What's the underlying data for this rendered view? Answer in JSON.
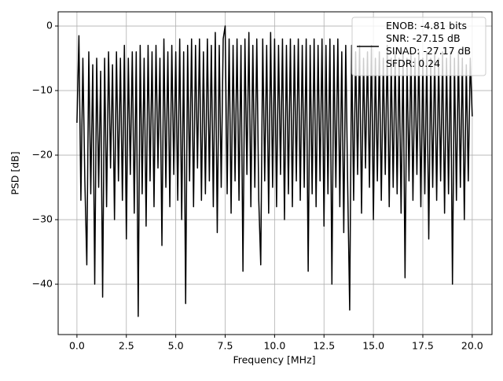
{
  "chart_data": {
    "type": "line",
    "xlabel": "Frequency [MHz]",
    "ylabel": "PSD [dB]",
    "xlim": [
      -0.95,
      21.0
    ],
    "ylim": [
      -47.8,
      2.2
    ],
    "xticks": [
      {
        "value": 0,
        "label": "0.0"
      },
      2.5,
      {
        "value": 5,
        "label": "5.0"
      },
      7.5,
      {
        "value": 10,
        "label": "10.0"
      },
      12.5,
      {
        "value": 15,
        "label": "15.0"
      },
      17.5,
      {
        "value": 20,
        "label": "20.0"
      }
    ],
    "yticks": [
      0,
      {
        "value": -10,
        "label": "−10"
      },
      {
        "value": -20,
        "label": "−20"
      },
      {
        "value": -30,
        "label": "−30"
      },
      {
        "value": -40,
        "label": "−40"
      }
    ],
    "grid": true,
    "legend": "upper right",
    "x": [
      0.0,
      0.1,
      0.2,
      0.3,
      0.4,
      0.5,
      0.6,
      0.7,
      0.8,
      0.9,
      1.0,
      1.1,
      1.2,
      1.3,
      1.4,
      1.5,
      1.6,
      1.7,
      1.8,
      1.9,
      2.0,
      2.1,
      2.2,
      2.3,
      2.4,
      2.5,
      2.6,
      2.7,
      2.8,
      2.9,
      3.0,
      3.1,
      3.2,
      3.3,
      3.4,
      3.5,
      3.6,
      3.7,
      3.8,
      3.9,
      4.0,
      4.1,
      4.2,
      4.3,
      4.4,
      4.5,
      4.6,
      4.7,
      4.8,
      4.9,
      5.0,
      5.1,
      5.2,
      5.3,
      5.4,
      5.5,
      5.6,
      5.7,
      5.8,
      5.9,
      6.0,
      6.1,
      6.2,
      6.3,
      6.4,
      6.5,
      6.6,
      6.7,
      6.8,
      6.9,
      7.0,
      7.1,
      7.2,
      7.3,
      7.4,
      7.5,
      7.6,
      7.7,
      7.8,
      7.9,
      8.0,
      8.1,
      8.2,
      8.3,
      8.4,
      8.5,
      8.6,
      8.7,
      8.8,
      8.9,
      9.0,
      9.1,
      9.2,
      9.3,
      9.4,
      9.5,
      9.6,
      9.7,
      9.8,
      9.9,
      10.0,
      10.1,
      10.2,
      10.3,
      10.4,
      10.5,
      10.6,
      10.7,
      10.8,
      10.9,
      11.0,
      11.1,
      11.2,
      11.3,
      11.4,
      11.5,
      11.6,
      11.7,
      11.8,
      11.9,
      12.0,
      12.1,
      12.2,
      12.3,
      12.4,
      12.5,
      12.6,
      12.7,
      12.8,
      12.9,
      13.0,
      13.1,
      13.2,
      13.3,
      13.4,
      13.5,
      13.6,
      13.7,
      13.8,
      13.9,
      14.0,
      14.1,
      14.2,
      14.3,
      14.4,
      14.5,
      14.6,
      14.7,
      14.8,
      14.9,
      15.0,
      15.1,
      15.2,
      15.3,
      15.4,
      15.5,
      15.6,
      15.7,
      15.8,
      15.9,
      16.0,
      16.1,
      16.2,
      16.3,
      16.4,
      16.5,
      16.6,
      16.7,
      16.8,
      16.9,
      17.0,
      17.1,
      17.2,
      17.3,
      17.4,
      17.5,
      17.6,
      17.7,
      17.8,
      17.9,
      18.0,
      18.1,
      18.2,
      18.3,
      18.4,
      18.5,
      18.6,
      18.7,
      18.8,
      18.9,
      19.0,
      19.1,
      19.2,
      19.3,
      19.4,
      19.5,
      19.6,
      19.7,
      19.8,
      19.9,
      20.0
    ],
    "series": [
      {
        "name": "ENOB: -4.81 bits\nSNR: -27.15 dB\nSINAD: -27.17 dB\nSFDR: 0.24",
        "color": "#000000",
        "values": [
          -15,
          -1.5,
          -27,
          -5,
          -24,
          -37,
          -4,
          -26,
          -6,
          -40,
          -5,
          -25,
          -7,
          -42,
          -5,
          -28,
          -4,
          -22,
          -6,
          -30,
          -4,
          -24,
          -5,
          -27,
          -3,
          -33,
          -5,
          -23,
          -4,
          -29,
          -4,
          -45,
          -3,
          -26,
          -5,
          -31,
          -3,
          -24,
          -4,
          -28,
          -3,
          -22,
          -5,
          -34,
          -2,
          -25,
          -4,
          -28,
          -3,
          -23,
          -4,
          -27,
          -2,
          -30,
          -4,
          -43,
          -3,
          -24,
          -2,
          -28,
          -3,
          -22,
          -2,
          -27,
          -4,
          -26,
          -2,
          -24,
          -3,
          -28,
          -1,
          -32,
          -3,
          -25,
          -2,
          0,
          -26,
          -2,
          -29,
          -3,
          -24,
          -2,
          -27,
          -3,
          -38,
          -2,
          -23,
          -1,
          -28,
          -3,
          -25,
          -2,
          -27,
          -37,
          -2,
          -24,
          -3,
          -29,
          -1,
          -25,
          -2,
          -28,
          -3,
          -23,
          -2,
          -30,
          -3,
          -26,
          -2,
          -28,
          -3,
          -24,
          -2,
          -27,
          -3,
          -25,
          -2,
          -38,
          -3,
          -26,
          -2,
          -28,
          -3,
          -24,
          -2,
          -31,
          -3,
          -26,
          -2,
          -40,
          -3,
          -25,
          -2,
          -28,
          -4,
          -32,
          -3,
          -25,
          -44,
          -3,
          -27,
          -4,
          -23,
          -3,
          -29,
          -5,
          -22,
          -4,
          -25,
          -3,
          -30,
          -5,
          -24,
          -4,
          -27,
          -5,
          -23,
          -3,
          -28,
          -5,
          -25,
          -4,
          -26,
          -5,
          -29,
          -4,
          -39,
          -5,
          -24,
          -4,
          -27,
          -5,
          -23,
          -4,
          -28,
          -5,
          -26,
          -4,
          -33,
          -5,
          -25,
          -4,
          -27,
          -5,
          -24,
          -4,
          -29,
          -5,
          -26,
          -4,
          -40,
          -5,
          -27,
          -4,
          -25,
          -5,
          -30,
          -6,
          -24,
          -5,
          -14
        ]
      }
    ]
  }
}
